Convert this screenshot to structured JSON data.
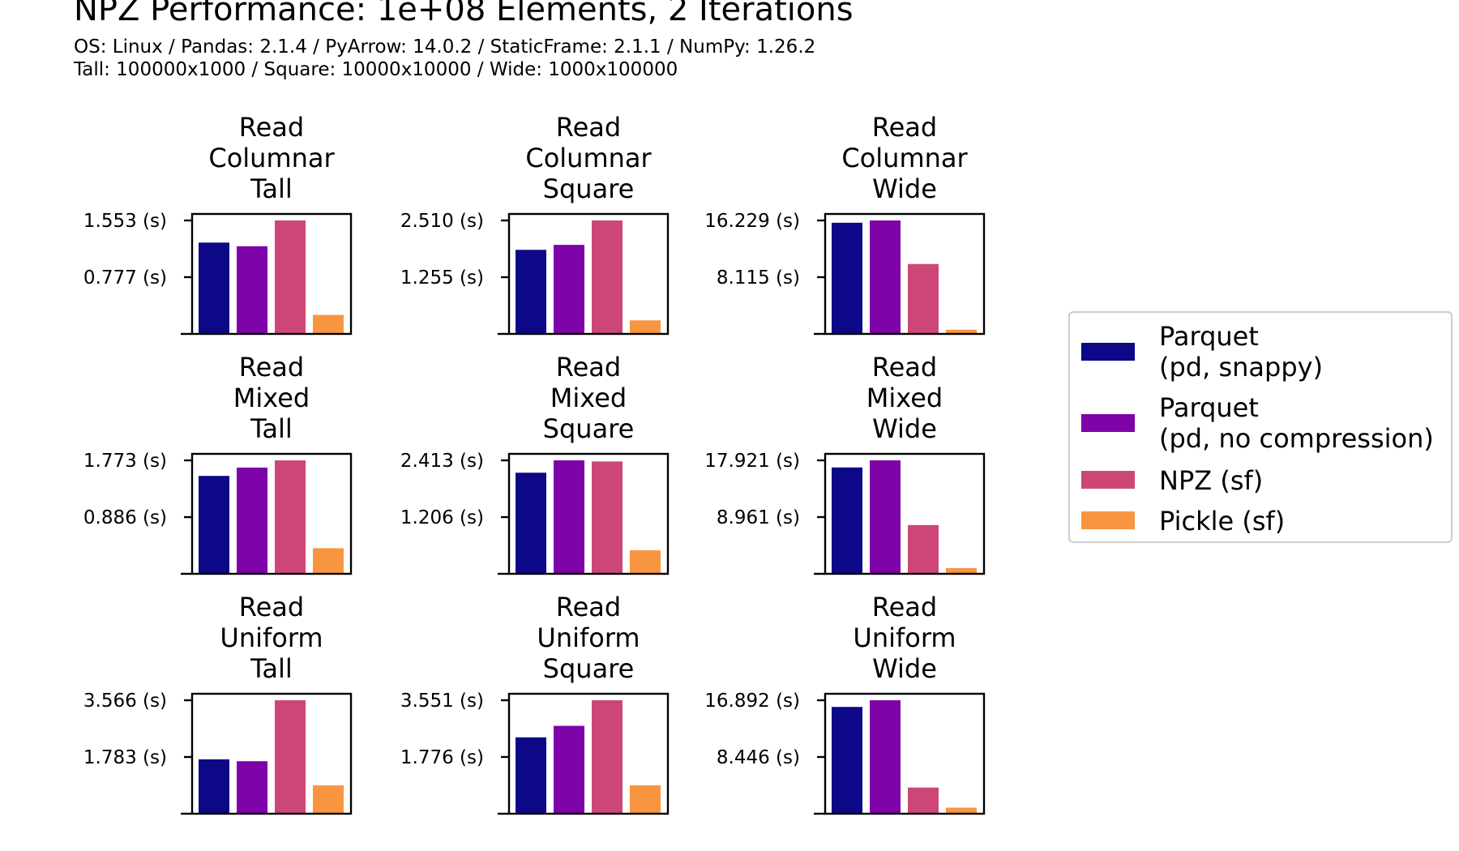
{
  "figure": {
    "title": "NPZ Performance: 1e+08 Elements, 2 Iterations",
    "subtitle_line1": "OS: Linux / Pandas: 2.1.4 / PyArrow: 14.0.2 / StaticFrame: 2.1.1 / NumPy: 1.26.2",
    "subtitle_line2": "Tall: 100000x1000 / Square: 10000x10000 / Wide: 1000x100000"
  },
  "legend": {
    "placement": "right",
    "items": [
      {
        "label": "Parquet\n(pd, snappy)",
        "color": "#0d0887"
      },
      {
        "label": "Parquet\n(pd, no compression)",
        "color": "#7e03a8"
      },
      {
        "label": "NPZ (sf)",
        "color": "#cc4778"
      },
      {
        "label": "Pickle (sf)",
        "color": "#f89540"
      }
    ]
  },
  "chart_data": [
    {
      "type": "bar",
      "title_lines": [
        "Read",
        "Columnar",
        "Tall"
      ],
      "categories": [
        "Parquet (pd, snappy)",
        "Parquet (pd, no compression)",
        "NPZ (sf)",
        "Pickle (sf)"
      ],
      "values": [
        1.25,
        1.2,
        1.553,
        0.26
      ],
      "ylim": [
        0,
        1.553
      ],
      "yticks": [
        {
          "value": 0.777,
          "label": "0.777 (s)"
        },
        {
          "value": 1.553,
          "label": "1.553 (s)"
        }
      ],
      "ylabel": "",
      "xlabel": ""
    },
    {
      "type": "bar",
      "title_lines": [
        "Read",
        "Columnar",
        "Square"
      ],
      "categories": [
        "Parquet (pd, snappy)",
        "Parquet (pd, no compression)",
        "NPZ (sf)",
        "Pickle (sf)"
      ],
      "values": [
        1.86,
        1.97,
        2.51,
        0.3
      ],
      "ylim": [
        0,
        2.51
      ],
      "yticks": [
        {
          "value": 1.255,
          "label": "1.255 (s)"
        },
        {
          "value": 2.51,
          "label": "2.510 (s)"
        }
      ],
      "ylabel": "",
      "xlabel": ""
    },
    {
      "type": "bar",
      "title_lines": [
        "Read",
        "Columnar",
        "Wide"
      ],
      "categories": [
        "Parquet (pd, snappy)",
        "Parquet (pd, no compression)",
        "NPZ (sf)",
        "Pickle (sf)"
      ],
      "values": [
        15.9,
        16.229,
        10.0,
        0.6
      ],
      "ylim": [
        0,
        16.229
      ],
      "yticks": [
        {
          "value": 8.115,
          "label": "8.115 (s)"
        },
        {
          "value": 16.229,
          "label": "16.229 (s)"
        }
      ],
      "ylabel": "",
      "xlabel": ""
    },
    {
      "type": "bar",
      "title_lines": [
        "Read",
        "Mixed",
        "Tall"
      ],
      "categories": [
        "Parquet (pd, snappy)",
        "Parquet (pd, no compression)",
        "NPZ (sf)",
        "Pickle (sf)"
      ],
      "values": [
        1.53,
        1.66,
        1.773,
        0.4
      ],
      "ylim": [
        0,
        1.773
      ],
      "yticks": [
        {
          "value": 0.886,
          "label": "0.886 (s)"
        },
        {
          "value": 1.773,
          "label": "1.773 (s)"
        }
      ],
      "ylabel": "",
      "xlabel": ""
    },
    {
      "type": "bar",
      "title_lines": [
        "Read",
        "Mixed",
        "Square"
      ],
      "categories": [
        "Parquet (pd, snappy)",
        "Parquet (pd, no compression)",
        "NPZ (sf)",
        "Pickle (sf)"
      ],
      "values": [
        2.15,
        2.413,
        2.39,
        0.5
      ],
      "ylim": [
        0,
        2.413
      ],
      "yticks": [
        {
          "value": 1.206,
          "label": "1.206 (s)"
        },
        {
          "value": 2.413,
          "label": "2.413 (s)"
        }
      ],
      "ylabel": "",
      "xlabel": ""
    },
    {
      "type": "bar",
      "title_lines": [
        "Read",
        "Mixed",
        "Wide"
      ],
      "categories": [
        "Parquet (pd, snappy)",
        "Parquet (pd, no compression)",
        "NPZ (sf)",
        "Pickle (sf)"
      ],
      "values": [
        16.8,
        17.921,
        7.7,
        0.9
      ],
      "ylim": [
        0,
        17.921
      ],
      "yticks": [
        {
          "value": 8.961,
          "label": "8.961 (s)"
        },
        {
          "value": 17.921,
          "label": "17.921 (s)"
        }
      ],
      "ylabel": "",
      "xlabel": ""
    },
    {
      "type": "bar",
      "title_lines": [
        "Read",
        "Uniform",
        "Tall"
      ],
      "categories": [
        "Parquet (pd, snappy)",
        "Parquet (pd, no compression)",
        "NPZ (sf)",
        "Pickle (sf)"
      ],
      "values": [
        1.71,
        1.65,
        3.566,
        0.89
      ],
      "ylim": [
        0,
        3.566
      ],
      "yticks": [
        {
          "value": 1.783,
          "label": "1.783 (s)"
        },
        {
          "value": 3.566,
          "label": "3.566 (s)"
        }
      ],
      "ylabel": "",
      "xlabel": ""
    },
    {
      "type": "bar",
      "title_lines": [
        "Read",
        "Uniform",
        "Square"
      ],
      "categories": [
        "Parquet (pd, snappy)",
        "Parquet (pd, no compression)",
        "NPZ (sf)",
        "Pickle (sf)"
      ],
      "values": [
        2.39,
        2.75,
        3.551,
        0.89
      ],
      "ylim": [
        0,
        3.551
      ],
      "yticks": [
        {
          "value": 1.776,
          "label": "1.776 (s)"
        },
        {
          "value": 3.551,
          "label": "3.551 (s)"
        }
      ],
      "ylabel": "",
      "xlabel": ""
    },
    {
      "type": "bar",
      "title_lines": [
        "Read",
        "Uniform",
        "Wide"
      ],
      "categories": [
        "Parquet (pd, snappy)",
        "Parquet (pd, no compression)",
        "NPZ (sf)",
        "Pickle (sf)"
      ],
      "values": [
        15.9,
        16.892,
        3.9,
        0.9
      ],
      "ylim": [
        0,
        16.892
      ],
      "yticks": [
        {
          "value": 8.446,
          "label": "8.446 (s)"
        },
        {
          "value": 16.892,
          "label": "16.892 (s)"
        }
      ],
      "ylabel": "",
      "xlabel": ""
    }
  ]
}
